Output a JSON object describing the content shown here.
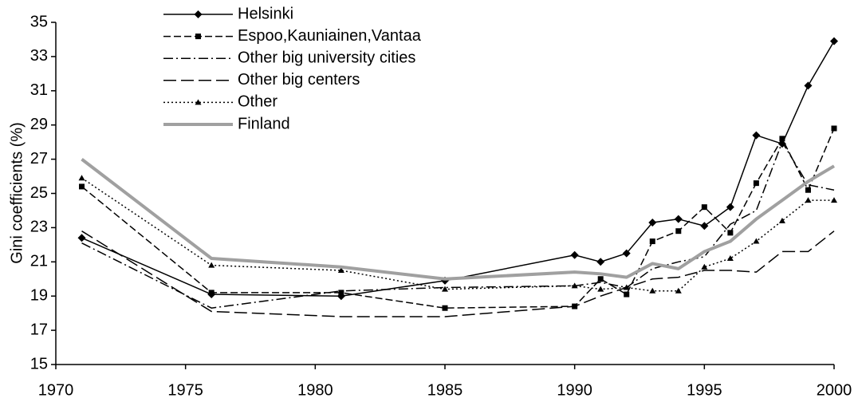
{
  "chart_data": {
    "type": "line",
    "y_label": "Gini coefficients (%)",
    "x": [
      1971,
      1976,
      1981,
      1985,
      1990,
      1991,
      1992,
      1993,
      1994,
      1995,
      1996,
      1997,
      1998,
      1999,
      2000
    ],
    "series": [
      {
        "name": "Helsinki",
        "color": "#000000",
        "style": "solid",
        "marker": "diamond",
        "values": [
          22.4,
          19.1,
          19.0,
          19.9,
          21.4,
          21.0,
          21.5,
          23.3,
          23.5,
          23.1,
          24.2,
          28.4,
          27.9,
          31.3,
          33.9
        ]
      },
      {
        "name": "Espoo,Kauniainen,Vantaa",
        "color": "#000000",
        "style": "dashed",
        "marker": "square",
        "values": [
          25.4,
          19.2,
          19.2,
          18.3,
          18.4,
          20.0,
          19.1,
          22.2,
          22.8,
          24.2,
          22.7,
          25.6,
          28.2,
          25.2,
          28.8
        ]
      },
      {
        "name": "Other big university cities",
        "color": "#000000",
        "style": "dashdot",
        "marker": null,
        "values": [
          22.1,
          18.3,
          19.3,
          19.5,
          19.6,
          19.8,
          19.5,
          20.6,
          21.0,
          21.3,
          23.2,
          24.0,
          28.0,
          25.5,
          25.2
        ]
      },
      {
        "name": "Other big centers",
        "color": "#000000",
        "style": "longdash",
        "marker": null,
        "values": [
          22.8,
          18.1,
          17.8,
          17.8,
          18.4,
          19.0,
          19.5,
          20.0,
          20.1,
          20.5,
          20.5,
          20.4,
          21.6,
          21.6,
          22.8
        ]
      },
      {
        "name": "Other",
        "color": "#000000",
        "style": "dotted",
        "marker": "triangle",
        "values": [
          25.9,
          20.8,
          20.5,
          19.4,
          19.6,
          19.4,
          19.5,
          19.3,
          19.3,
          20.7,
          21.2,
          22.2,
          23.4,
          24.6,
          24.6
        ]
      },
      {
        "name": "Finland",
        "color": "#a0a0a0",
        "style": "thick",
        "marker": null,
        "values": [
          27.0,
          21.2,
          20.7,
          20.0,
          20.4,
          20.3,
          20.1,
          20.9,
          20.6,
          21.6,
          22.2,
          23.5,
          24.6,
          25.7,
          26.6
        ]
      }
    ],
    "xlim": [
      1970,
      2000
    ],
    "xticks": [
      1970,
      1975,
      1980,
      1985,
      1990,
      1995,
      2000
    ],
    "ylim": [
      15,
      35
    ],
    "yticks": [
      15,
      17,
      19,
      21,
      23,
      25,
      27,
      29,
      31,
      33,
      35
    ],
    "legend": "top-left",
    "grid": false
  }
}
